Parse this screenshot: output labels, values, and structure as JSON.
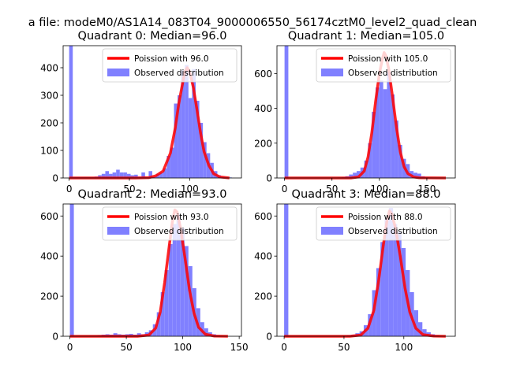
{
  "figure": {
    "suptitle": "a file: modeM0/AS1A14_083T04_9000006550_56174cztM0_level2_quad_clean"
  },
  "colors": {
    "poisson": "#ff0000",
    "observed": "#8080ff",
    "axis": "#000000"
  },
  "chart_data": [
    {
      "type": "bar",
      "title": "Quadrant 0: Median=96.0",
      "median": 96.0,
      "xlim": [
        -5,
        143
      ],
      "ylim": [
        0,
        480
      ],
      "xticks": [
        0,
        50,
        100
      ],
      "yticks": [
        0,
        100,
        200,
        300,
        400
      ],
      "legend": {
        "position": "top-right",
        "entries": [
          "Poission with 96.0",
          "Observed distribution"
        ]
      },
      "series": [
        {
          "name": "Observed distribution",
          "bin_width": 3,
          "bins": [
            [
              0,
              480
            ],
            [
              3,
              3
            ],
            [
              6,
              3
            ],
            [
              9,
              3
            ],
            [
              12,
              3
            ],
            [
              15,
              3
            ],
            [
              18,
              3
            ],
            [
              21,
              5
            ],
            [
              24,
              10
            ],
            [
              27,
              15
            ],
            [
              30,
              25
            ],
            [
              33,
              15
            ],
            [
              36,
              20
            ],
            [
              39,
              30
            ],
            [
              42,
              20
            ],
            [
              45,
              20
            ],
            [
              48,
              15
            ],
            [
              51,
              10
            ],
            [
              54,
              12
            ],
            [
              57,
              5
            ],
            [
              60,
              20
            ],
            [
              63,
              3
            ],
            [
              66,
              25
            ],
            [
              69,
              5
            ],
            [
              72,
              15
            ],
            [
              75,
              20
            ],
            [
              78,
              35
            ],
            [
              81,
              80
            ],
            [
              84,
              110
            ],
            [
              87,
              270
            ],
            [
              90,
              300
            ],
            [
              93,
              390
            ],
            [
              96,
              410
            ],
            [
              99,
              290
            ],
            [
              102,
              395
            ],
            [
              105,
              280
            ],
            [
              108,
              200
            ],
            [
              111,
              130
            ],
            [
              114,
              90
            ],
            [
              117,
              55
            ],
            [
              120,
              25
            ],
            [
              123,
              10
            ],
            [
              126,
              5
            ],
            [
              129,
              3
            ],
            [
              132,
              2
            ]
          ]
        },
        {
          "name": "Poission with 96.0",
          "points": [
            [
              0,
              0
            ],
            [
              55,
              0
            ],
            [
              66,
              1
            ],
            [
              72,
              8
            ],
            [
              78,
              25
            ],
            [
              84,
              90
            ],
            [
              88,
              180
            ],
            [
              91,
              270
            ],
            [
              94,
              340
            ],
            [
              96,
              385
            ],
            [
              98,
              400
            ],
            [
              100,
              385
            ],
            [
              103,
              330
            ],
            [
              106,
              250
            ],
            [
              109,
              165
            ],
            [
              112,
              95
            ],
            [
              116,
              45
            ],
            [
              120,
              15
            ],
            [
              125,
              4
            ],
            [
              133,
              0
            ]
          ]
        }
      ]
    },
    {
      "type": "bar",
      "title": "Quadrant 1: Median=105.0",
      "median": 105.0,
      "xlim": [
        -8,
        180
      ],
      "ylim": [
        0,
        760
      ],
      "xticks": [
        0,
        50,
        100,
        150
      ],
      "yticks": [
        0,
        200,
        400,
        600
      ],
      "legend": {
        "position": "top-right",
        "entries": [
          "Poission with 105.0",
          "Observed distribution"
        ]
      },
      "series": [
        {
          "name": "Observed distribution",
          "bin_width": 4,
          "bins": [
            [
              0,
              760
            ],
            [
              4,
              2
            ],
            [
              8,
              2
            ],
            [
              12,
              2
            ],
            [
              16,
              2
            ],
            [
              20,
              2
            ],
            [
              24,
              2
            ],
            [
              28,
              2
            ],
            [
              32,
              2
            ],
            [
              36,
              2
            ],
            [
              40,
              2
            ],
            [
              44,
              2
            ],
            [
              48,
              2
            ],
            [
              52,
              2
            ],
            [
              56,
              3
            ],
            [
              60,
              5
            ],
            [
              64,
              10
            ],
            [
              68,
              20
            ],
            [
              72,
              30
            ],
            [
              76,
              40
            ],
            [
              80,
              60
            ],
            [
              84,
              100
            ],
            [
              88,
              200
            ],
            [
              92,
              380
            ],
            [
              96,
              520
            ],
            [
              100,
              560
            ],
            [
              104,
              510
            ],
            [
              108,
              610
            ],
            [
              112,
              480
            ],
            [
              116,
              330
            ],
            [
              120,
              190
            ],
            [
              124,
              110
            ],
            [
              128,
              80
            ],
            [
              132,
              40
            ],
            [
              136,
              30
            ],
            [
              140,
              25
            ],
            [
              144,
              10
            ],
            [
              148,
              5
            ],
            [
              152,
              3
            ],
            [
              156,
              2
            ],
            [
              160,
              2
            ]
          ]
        },
        {
          "name": "Poission with 105.0",
          "points": [
            [
              0,
              0
            ],
            [
              70,
              0
            ],
            [
              78,
              6
            ],
            [
              84,
              40
            ],
            [
              88,
              120
            ],
            [
              92,
              260
            ],
            [
              96,
              440
            ],
            [
              100,
              600
            ],
            [
              103,
              680
            ],
            [
              105,
              720
            ],
            [
              107,
              700
            ],
            [
              110,
              620
            ],
            [
              114,
              460
            ],
            [
              118,
              290
            ],
            [
              122,
              150
            ],
            [
              126,
              65
            ],
            [
              130,
              25
            ],
            [
              136,
              6
            ],
            [
              142,
              1
            ],
            [
              170,
              0
            ]
          ]
        }
      ]
    },
    {
      "type": "bar",
      "title": "Quadrant 2: Median=93.0",
      "median": 93.0,
      "xlim": [
        -6,
        152
      ],
      "ylim": [
        0,
        660
      ],
      "xticks": [
        0,
        50,
        100,
        150
      ],
      "yticks": [
        0,
        200,
        400,
        600
      ],
      "legend": {
        "position": "top-right",
        "entries": [
          "Poission with 93.0",
          "Observed distribution"
        ]
      },
      "series": [
        {
          "name": "Observed distribution",
          "bin_width": 3.5,
          "bins": [
            [
              0,
              660
            ],
            [
              3.5,
              2
            ],
            [
              7,
              2
            ],
            [
              10.5,
              2
            ],
            [
              14,
              2
            ],
            [
              17.5,
              3
            ],
            [
              21,
              3
            ],
            [
              24.5,
              5
            ],
            [
              28,
              8
            ],
            [
              31.5,
              10
            ],
            [
              35,
              8
            ],
            [
              38.5,
              15
            ],
            [
              42,
              10
            ],
            [
              45.5,
              8
            ],
            [
              49,
              10
            ],
            [
              52.5,
              12
            ],
            [
              56,
              8
            ],
            [
              59.5,
              15
            ],
            [
              63,
              10
            ],
            [
              66.5,
              20
            ],
            [
              70,
              30
            ],
            [
              73.5,
              60
            ],
            [
              77,
              120
            ],
            [
              80.5,
              220
            ],
            [
              84,
              330
            ],
            [
              87.5,
              460
            ],
            [
              91,
              560
            ],
            [
              94.5,
              610
            ],
            [
              98,
              540
            ],
            [
              101.5,
              450
            ],
            [
              105,
              350
            ],
            [
              108.5,
              240
            ],
            [
              112,
              140
            ],
            [
              115.5,
              70
            ],
            [
              119,
              40
            ],
            [
              122.5,
              20
            ],
            [
              126,
              10
            ],
            [
              129.5,
              5
            ]
          ]
        },
        {
          "name": "Poission with 93.0",
          "points": [
            [
              0,
              0
            ],
            [
              60,
              0
            ],
            [
              70,
              6
            ],
            [
              76,
              40
            ],
            [
              80,
              120
            ],
            [
              84,
              270
            ],
            [
              88,
              450
            ],
            [
              91,
              580
            ],
            [
              93,
              630
            ],
            [
              95,
              620
            ],
            [
              98,
              540
            ],
            [
              102,
              390
            ],
            [
              106,
              230
            ],
            [
              110,
              115
            ],
            [
              114,
              45
            ],
            [
              120,
              10
            ],
            [
              128,
              1
            ],
            [
              140,
              0
            ]
          ]
        }
      ]
    },
    {
      "type": "bar",
      "title": "Quadrant 3: Median=88.0",
      "median": 88.0,
      "xlim": [
        -6,
        143
      ],
      "ylim": [
        0,
        660
      ],
      "xticks": [
        0,
        50,
        100
      ],
      "yticks": [
        0,
        200,
        400,
        600
      ],
      "legend": {
        "position": "top-right",
        "entries": [
          "Poission with 88.0",
          "Observed distribution"
        ]
      },
      "series": [
        {
          "name": "Observed distribution",
          "bin_width": 3.5,
          "bins": [
            [
              0,
              660
            ],
            [
              3.5,
              2
            ],
            [
              7,
              2
            ],
            [
              10.5,
              2
            ],
            [
              14,
              2
            ],
            [
              17.5,
              2
            ],
            [
              21,
              2
            ],
            [
              24.5,
              2
            ],
            [
              28,
              2
            ],
            [
              31.5,
              2
            ],
            [
              35,
              2
            ],
            [
              38.5,
              2
            ],
            [
              42,
              2
            ],
            [
              45.5,
              2
            ],
            [
              49,
              3
            ],
            [
              52.5,
              5
            ],
            [
              56,
              8
            ],
            [
              59.5,
              15
            ],
            [
              63,
              25
            ],
            [
              66.5,
              55
            ],
            [
              70,
              110
            ],
            [
              73.5,
              230
            ],
            [
              77,
              340
            ],
            [
              80.5,
              470
            ],
            [
              84,
              590
            ],
            [
              87.5,
              640
            ],
            [
              91,
              560
            ],
            [
              94.5,
              520
            ],
            [
              98,
              440
            ],
            [
              101.5,
              330
            ],
            [
              105,
              220
            ],
            [
              108.5,
              130
            ],
            [
              112,
              70
            ],
            [
              115.5,
              35
            ],
            [
              119,
              20
            ],
            [
              122.5,
              10
            ],
            [
              126,
              5
            ]
          ]
        },
        {
          "name": "Poission with 88.0",
          "points": [
            [
              0,
              0
            ],
            [
              55,
              0
            ],
            [
              64,
              6
            ],
            [
              70,
              40
            ],
            [
              75,
              130
            ],
            [
              79,
              280
            ],
            [
              83,
              460
            ],
            [
              86,
              580
            ],
            [
              88,
              625
            ],
            [
              90,
              610
            ],
            [
              93,
              540
            ],
            [
              97,
              400
            ],
            [
              101,
              240
            ],
            [
              105,
              120
            ],
            [
              110,
              40
            ],
            [
              116,
              8
            ],
            [
              125,
              1
            ],
            [
              135,
              0
            ]
          ]
        }
      ]
    }
  ]
}
